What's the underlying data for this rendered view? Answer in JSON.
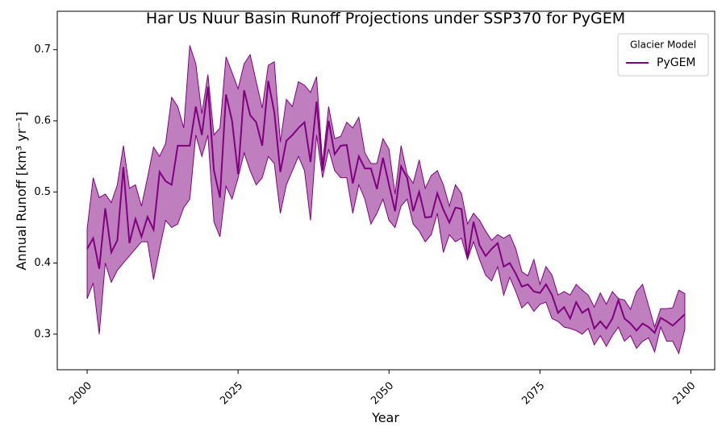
{
  "chart_data": {
    "type": "line_band",
    "title": "Har Us Nuur Basin Runoff Projections under SSP370 for PyGEM",
    "xlabel": "Year",
    "ylabel": "Annual Runoff [km³ yr⁻¹]",
    "legend_title": "Glacier Model",
    "legend_loc": "upper right",
    "xlim": [
      1995.05,
      2103.95
    ],
    "xticks": [
      2000,
      2025,
      2050,
      2075,
      2100
    ],
    "ylim": [
      0.25,
      0.754
    ],
    "yticks": [
      0.3,
      0.4,
      0.5,
      0.6,
      0.7
    ],
    "x": [
      2000,
      2001,
      2002,
      2003,
      2004,
      2005,
      2006,
      2007,
      2008,
      2009,
      2010,
      2011,
      2012,
      2013,
      2014,
      2015,
      2016,
      2017,
      2018,
      2019,
      2020,
      2021,
      2022,
      2023,
      2024,
      2025,
      2026,
      2027,
      2028,
      2029,
      2030,
      2031,
      2032,
      2033,
      2034,
      2035,
      2036,
      2037,
      2038,
      2039,
      2040,
      2041,
      2042,
      2043,
      2044,
      2045,
      2046,
      2047,
      2048,
      2049,
      2050,
      2051,
      2052,
      2053,
      2054,
      2055,
      2056,
      2057,
      2058,
      2059,
      2060,
      2061,
      2062,
      2063,
      2064,
      2065,
      2066,
      2067,
      2068,
      2069,
      2070,
      2071,
      2072,
      2073,
      2074,
      2075,
      2076,
      2077,
      2078,
      2079,
      2080,
      2081,
      2082,
      2083,
      2084,
      2085,
      2086,
      2087,
      2088,
      2089,
      2090,
      2091,
      2092,
      2093,
      2094,
      2095,
      2096,
      2097,
      2098,
      2099
    ],
    "series": [
      {
        "name": "PyGEM",
        "color": "#800080",
        "band_opacity": 0.5,
        "values": [
          0.42,
          0.435,
          0.392,
          0.477,
          0.415,
          0.432,
          0.535,
          0.428,
          0.462,
          0.437,
          0.465,
          0.447,
          0.528,
          0.515,
          0.51,
          0.565,
          0.565,
          0.565,
          0.62,
          0.58,
          0.648,
          0.53,
          0.492,
          0.637,
          0.6,
          0.525,
          0.643,
          0.608,
          0.598,
          0.565,
          0.656,
          0.612,
          0.528,
          0.572,
          0.58,
          0.59,
          0.598,
          0.542,
          0.627,
          0.53,
          0.6,
          0.553,
          0.565,
          0.566,
          0.512,
          0.55,
          0.533,
          0.533,
          0.504,
          0.548,
          0.51,
          0.473,
          0.536,
          0.52,
          0.473,
          0.5,
          0.464,
          0.465,
          0.498,
          0.475,
          0.457,
          0.478,
          0.476,
          0.407,
          0.458,
          0.425,
          0.41,
          0.42,
          0.428,
          0.395,
          0.4,
          0.385,
          0.367,
          0.37,
          0.36,
          0.358,
          0.37,
          0.355,
          0.33,
          0.338,
          0.322,
          0.345,
          0.33,
          0.336,
          0.308,
          0.318,
          0.308,
          0.322,
          0.348,
          0.322,
          0.315,
          0.305,
          0.315,
          0.31,
          0.302,
          0.323,
          0.318,
          0.312,
          0.32,
          0.328
        ],
        "lower": [
          0.35,
          0.372,
          0.3,
          0.4,
          0.373,
          0.39,
          0.4,
          0.41,
          0.42,
          0.43,
          0.43,
          0.377,
          0.42,
          0.46,
          0.45,
          0.455,
          0.478,
          0.49,
          0.58,
          0.55,
          0.58,
          0.458,
          0.437,
          0.508,
          0.49,
          0.52,
          0.555,
          0.53,
          0.51,
          0.52,
          0.55,
          0.54,
          0.47,
          0.51,
          0.53,
          0.55,
          0.53,
          0.46,
          0.58,
          0.52,
          0.56,
          0.53,
          0.52,
          0.52,
          0.47,
          0.51,
          0.49,
          0.455,
          0.47,
          0.49,
          0.46,
          0.45,
          0.48,
          0.49,
          0.455,
          0.445,
          0.43,
          0.44,
          0.47,
          0.415,
          0.44,
          0.43,
          0.435,
          0.405,
          0.43,
          0.405,
          0.383,
          0.375,
          0.395,
          0.355,
          0.38,
          0.36,
          0.337,
          0.345,
          0.332,
          0.342,
          0.345,
          0.322,
          0.318,
          0.31,
          0.308,
          0.305,
          0.3,
          0.308,
          0.285,
          0.298,
          0.283,
          0.298,
          0.31,
          0.29,
          0.298,
          0.28,
          0.29,
          0.295,
          0.275,
          0.31,
          0.29,
          0.29,
          0.273,
          0.307
        ],
        "upper": [
          0.448,
          0.52,
          0.492,
          0.497,
          0.485,
          0.51,
          0.565,
          0.505,
          0.51,
          0.48,
          0.52,
          0.563,
          0.55,
          0.568,
          0.633,
          0.62,
          0.59,
          0.706,
          0.68,
          0.61,
          0.665,
          0.58,
          0.59,
          0.69,
          0.668,
          0.645,
          0.68,
          0.693,
          0.655,
          0.618,
          0.678,
          0.683,
          0.57,
          0.63,
          0.62,
          0.655,
          0.65,
          0.64,
          0.662,
          0.54,
          0.62,
          0.575,
          0.578,
          0.598,
          0.59,
          0.605,
          0.555,
          0.54,
          0.54,
          0.575,
          0.56,
          0.497,
          0.565,
          0.525,
          0.512,
          0.545,
          0.505,
          0.523,
          0.53,
          0.51,
          0.48,
          0.51,
          0.498,
          0.455,
          0.47,
          0.46,
          0.445,
          0.432,
          0.44,
          0.435,
          0.44,
          0.42,
          0.388,
          0.382,
          0.405,
          0.37,
          0.395,
          0.383,
          0.355,
          0.36,
          0.355,
          0.37,
          0.362,
          0.355,
          0.338,
          0.358,
          0.342,
          0.36,
          0.35,
          0.348,
          0.335,
          0.36,
          0.37,
          0.34,
          0.31,
          0.336,
          0.336,
          0.337,
          0.362,
          0.357
        ]
      }
    ]
  }
}
